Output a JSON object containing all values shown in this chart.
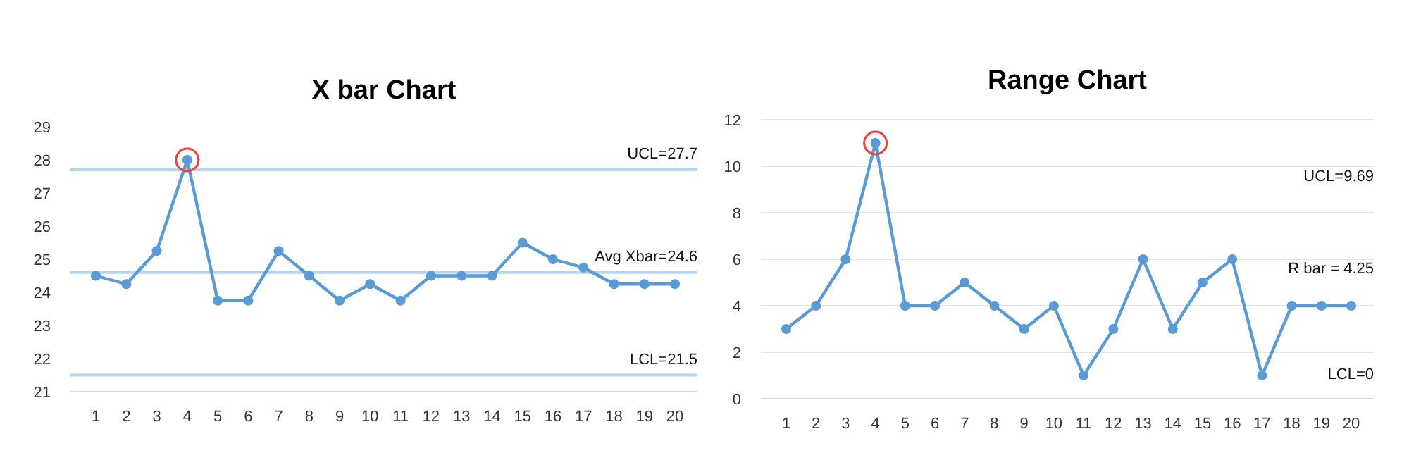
{
  "chart_data": [
    {
      "type": "line",
      "title": "X bar Chart",
      "categories": [
        "1",
        "2",
        "3",
        "4",
        "5",
        "6",
        "7",
        "8",
        "9",
        "10",
        "11",
        "12",
        "13",
        "14",
        "15",
        "16",
        "17",
        "18",
        "19",
        "20"
      ],
      "series": [
        {
          "color": "#5b9bd5",
          "values": [
            24.5,
            24.25,
            25.25,
            28,
            23.75,
            23.75,
            25.25,
            24.5,
            23.75,
            24.25,
            23.75,
            24.5,
            24.5,
            24.5,
            25.5,
            25,
            24.75,
            24.25,
            24.25,
            24.25
          ]
        }
      ],
      "ylim": [
        21,
        29
      ],
      "yticks": [
        21,
        22,
        23,
        24,
        25,
        26,
        27,
        28,
        29
      ],
      "grid": false,
      "marker": "circle",
      "line_style": "solid",
      "ref_lines": [
        {
          "axis": "y",
          "value": 27.7,
          "label": "UCL=27.7",
          "color": "#b4d5f0"
        },
        {
          "axis": "y",
          "value": 24.6,
          "label": "Avg Xbar=24.6",
          "color": "#b4d5f0"
        },
        {
          "axis": "y",
          "value": 21.5,
          "label": "LCL=21.5",
          "color": "#b4d5f0"
        }
      ]
    },
    {
      "type": "line",
      "title": "Range Chart",
      "categories": [
        "1",
        "2",
        "3",
        "4",
        "5",
        "6",
        "7",
        "8",
        "9",
        "10",
        "11",
        "12",
        "13",
        "14",
        "15",
        "16",
        "17",
        "18",
        "19",
        "20"
      ],
      "series": [
        {
          "color": "#5b9bd5",
          "values": [
            3,
            4,
            6,
            11,
            4,
            4,
            5,
            4,
            3,
            4,
            1,
            3,
            6,
            3,
            5,
            6,
            1,
            4,
            4,
            4
          ]
        }
      ],
      "ylim": [
        0,
        12
      ],
      "yticks": [
        0,
        2,
        4,
        6,
        8,
        10,
        12
      ],
      "grid": "y",
      "marker": "circle",
      "line_style": "solid",
      "annotations": [
        "UCL=9.69",
        "R bar = 4.25",
        "LCL=0"
      ]
    }
  ]
}
